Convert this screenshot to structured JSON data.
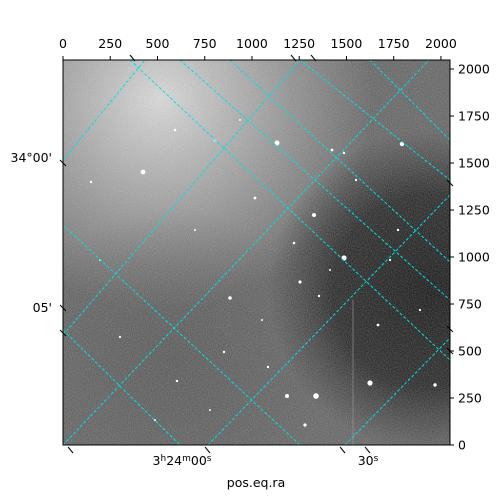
{
  "chart_data": {
    "type": "image",
    "title": "",
    "xlabel": "pos.eq.ra",
    "ylabel": "",
    "pixel_axes": {
      "x": {
        "range": [
          0,
          2048
        ],
        "ticks": [
          0,
          250,
          500,
          750,
          1000,
          1250,
          1500,
          1750,
          2000
        ],
        "position": "top"
      },
      "y": {
        "range": [
          0,
          2048
        ],
        "ticks": [
          0,
          250,
          500,
          750,
          1000,
          1250,
          1500,
          1750,
          2000
        ],
        "position": "right"
      }
    },
    "world_axes": {
      "ra": {
        "ticks": [
          {
            "label": "3h24m00s",
            "main": "3",
            "h": "h",
            "mid": "24",
            "m": "m",
            "sec": "00",
            "s": "s"
          },
          {
            "label": "30s",
            "main": "30",
            "s": "s"
          }
        ],
        "position": "bottom"
      },
      "dec": {
        "ticks": [
          "34°00'",
          "05'"
        ],
        "position": "left"
      }
    },
    "grid": {
      "shown": true,
      "color": "#00e0e0",
      "style": "dashed"
    },
    "colormap": "gray"
  }
}
